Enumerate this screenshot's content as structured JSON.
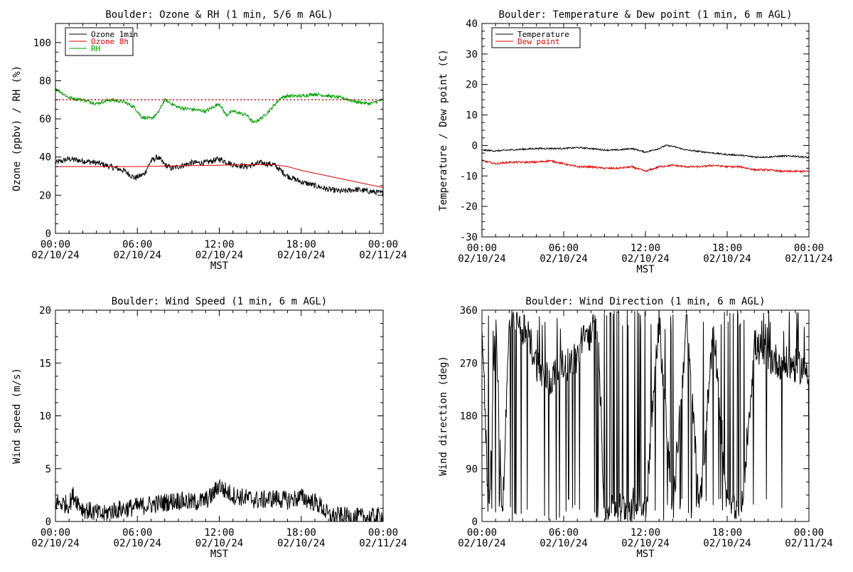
{
  "colors": {
    "black": "#000000",
    "red": "#e00000",
    "green": "#00a000",
    "background": "#ffffff"
  },
  "chart_data": [
    {
      "type": "line",
      "title": "Boulder: Ozone & RH (1 min, 5/6 m AGL)",
      "xlabel": "MST",
      "ylabel": "Ozone (ppbv) / RH (%)",
      "xlim": [
        0,
        24
      ],
      "ylim": [
        0,
        110
      ],
      "x_ticks": [
        {
          "time": "00:00",
          "date": "02/10/24"
        },
        {
          "time": "06:00",
          "date": "02/10/24"
        },
        {
          "time": "12:00",
          "date": "02/10/24"
        },
        {
          "time": "18:00",
          "date": "02/10/24"
        },
        {
          "time": "00:00",
          "date": "02/11/24"
        }
      ],
      "y_ticks": [
        "0",
        "20",
        "40",
        "60",
        "80",
        "100"
      ],
      "reference_line": {
        "y": 70,
        "style": "dotted",
        "color": "#e00000"
      },
      "legend": {
        "position": "top-left",
        "entries": [
          {
            "label": "Ozone 1min",
            "color": "#000000"
          },
          {
            "label": "Ozone 8h",
            "color": "#e00000"
          },
          {
            "label": "RH",
            "color": "#00a000"
          }
        ]
      },
      "series": [
        {
          "name": "Ozone 1min",
          "color": "#000000",
          "noise": 1.5,
          "x": [
            0,
            1,
            2,
            3,
            4,
            5,
            5.8,
            6.5,
            7,
            7.5,
            8,
            8.5,
            9,
            10,
            11,
            12,
            13,
            14,
            15,
            16,
            17,
            18,
            19,
            20,
            21,
            22,
            23,
            24
          ],
          "y": [
            37,
            39,
            38,
            37,
            35,
            33,
            29,
            31,
            38,
            40,
            36,
            34,
            35,
            37,
            37,
            39,
            36,
            35,
            37,
            36,
            30,
            27,
            25,
            23,
            22,
            23,
            22,
            21
          ]
        },
        {
          "name": "Ozone 8h",
          "color": "#e00000",
          "noise": 0,
          "x": [
            0,
            6,
            10,
            14,
            16,
            17,
            18,
            20,
            22,
            24
          ],
          "y": [
            35,
            35,
            35.5,
            36,
            36,
            35,
            33,
            30,
            27,
            24
          ]
        },
        {
          "name": "RH",
          "color": "#00a000",
          "noise": 0.9,
          "x": [
            0,
            0.4,
            1,
            2,
            3,
            4,
            5,
            5.8,
            6.3,
            7,
            7.5,
            8,
            8.5,
            9,
            10,
            11,
            12,
            12.5,
            13,
            14,
            14.5,
            15,
            15.5,
            16,
            16.5,
            17,
            18,
            19,
            20,
            21,
            22,
            23,
            24
          ],
          "y": [
            76,
            74,
            71,
            70,
            68,
            70,
            69,
            66,
            61,
            60,
            63,
            70,
            68,
            66,
            65,
            64,
            68,
            62,
            64,
            62,
            58,
            60,
            63,
            67,
            71,
            72,
            72,
            73,
            72,
            71,
            69,
            68,
            70
          ]
        }
      ]
    },
    {
      "type": "line",
      "title": "Boulder: Temperature & Dew point (1 min, 6 m AGL)",
      "xlabel": "MST",
      "ylabel": "Temperature / Dew point (C)",
      "xlim": [
        0,
        24
      ],
      "ylim": [
        -30,
        40
      ],
      "x_ticks": [
        {
          "time": "00:00",
          "date": "02/10/24"
        },
        {
          "time": "06:00",
          "date": "02/10/24"
        },
        {
          "time": "12:00",
          "date": "02/10/24"
        },
        {
          "time": "18:00",
          "date": "02/10/24"
        },
        {
          "time": "00:00",
          "date": "02/11/24"
        }
      ],
      "y_ticks": [
        "-30",
        "-20",
        "-10",
        "0",
        "10",
        "20",
        "30",
        "40"
      ],
      "legend": {
        "position": "top-left",
        "entries": [
          {
            "label": "Temperature",
            "color": "#000000"
          },
          {
            "label": "Dew point",
            "color": "#e00000"
          }
        ]
      },
      "series": [
        {
          "name": "Temperature",
          "color": "#000000",
          "noise": 0.25,
          "x": [
            0,
            1,
            2,
            4,
            6,
            7,
            8,
            9,
            10,
            11,
            12,
            13,
            13.5,
            14,
            15,
            16,
            17,
            18,
            19,
            20,
            21,
            22,
            23,
            24
          ],
          "y": [
            -1.5,
            -1.8,
            -1.5,
            -1,
            -1,
            -0.7,
            -1,
            -1.5,
            -1.5,
            -1,
            -2.2,
            -1,
            0,
            -0.3,
            -1.5,
            -2,
            -2.5,
            -3,
            -3.2,
            -3.8,
            -3.8,
            -3.5,
            -3.5,
            -4
          ]
        },
        {
          "name": "Dew point",
          "color": "#e00000",
          "noise": 0.3,
          "x": [
            0,
            1,
            2,
            3,
            4,
            5,
            6,
            7,
            8,
            9,
            10,
            11,
            12,
            13,
            14,
            15,
            16,
            17,
            18,
            19,
            20,
            21,
            22,
            23,
            24
          ],
          "y": [
            -5,
            -6,
            -5.5,
            -5.5,
            -5.5,
            -5,
            -6,
            -7,
            -7,
            -7.5,
            -7.5,
            -7,
            -8.5,
            -7,
            -6.5,
            -7,
            -7,
            -6.5,
            -7,
            -7,
            -8,
            -8,
            -8.5,
            -8.5,
            -8.5
          ]
        }
      ]
    },
    {
      "type": "line",
      "title": "Boulder: Wind Speed (1 min, 6 m AGL)",
      "xlabel": "MST",
      "ylabel": "Wind speed (m/s)",
      "xlim": [
        0,
        24
      ],
      "ylim": [
        0,
        20
      ],
      "x_ticks": [
        {
          "time": "00:00",
          "date": "02/10/24"
        },
        {
          "time": "06:00",
          "date": "02/10/24"
        },
        {
          "time": "12:00",
          "date": "02/10/24"
        },
        {
          "time": "18:00",
          "date": "02/10/24"
        },
        {
          "time": "00:00",
          "date": "02/11/24"
        }
      ],
      "y_ticks": [
        "0",
        "5",
        "10",
        "15",
        "20"
      ],
      "series": [
        {
          "name": "",
          "color": "#000000",
          "noise": 0.9,
          "floor": 0,
          "x": [
            0,
            1,
            1.3,
            2,
            3,
            3.5,
            4,
            5,
            6,
            7,
            8,
            9,
            10,
            11,
            11.5,
            12,
            12.3,
            13,
            14,
            15,
            16,
            17,
            18,
            19,
            19.5,
            20,
            21,
            22,
            23,
            24
          ],
          "y": [
            1.8,
            1.6,
            2.5,
            1.2,
            0.8,
            0.6,
            1.0,
            1.2,
            1.4,
            1.6,
            1.8,
            2.0,
            1.8,
            2.0,
            2.5,
            3.5,
            3.0,
            2.5,
            2.2,
            2.0,
            2.2,
            2.0,
            2.3,
            1.8,
            1.4,
            0.5,
            0.5,
            0.4,
            0.4,
            0.5
          ]
        }
      ]
    },
    {
      "type": "scatter",
      "title": "Boulder: Wind Direction (1 min, 6 m AGL)",
      "xlabel": "MST",
      "ylabel": "Wind direction (deg)",
      "xlim": [
        0,
        24
      ],
      "ylim": [
        0,
        360
      ],
      "x_ticks": [
        {
          "time": "00:00",
          "date": "02/10/24"
        },
        {
          "time": "06:00",
          "date": "02/10/24"
        },
        {
          "time": "12:00",
          "date": "02/10/24"
        },
        {
          "time": "18:00",
          "date": "02/10/24"
        },
        {
          "time": "00:00",
          "date": "02/11/24"
        }
      ],
      "y_ticks": [
        "0",
        "90",
        "180",
        "270",
        "360"
      ],
      "series": [
        {
          "name": "",
          "color": "#000000",
          "wrap": true,
          "x": [
            0,
            0.5,
            1,
            1.5,
            2,
            2.5,
            3,
            3.5,
            4,
            4.5,
            5,
            5.5,
            6,
            6.5,
            7,
            7.5,
            8,
            8.5,
            9,
            10,
            11,
            12,
            13,
            14,
            15,
            16,
            17,
            18,
            19,
            20,
            21,
            22,
            23,
            24
          ],
          "y": [
            340,
            0,
            350,
            10,
            330,
            350,
            330,
            310,
            270,
            250,
            240,
            255,
            265,
            270,
            280,
            310,
            320,
            350,
            10,
            20,
            30,
            20,
            345,
            10,
            340,
            20,
            340,
            30,
            0,
            300,
            280,
            270,
            265,
            260
          ]
        }
      ]
    }
  ]
}
